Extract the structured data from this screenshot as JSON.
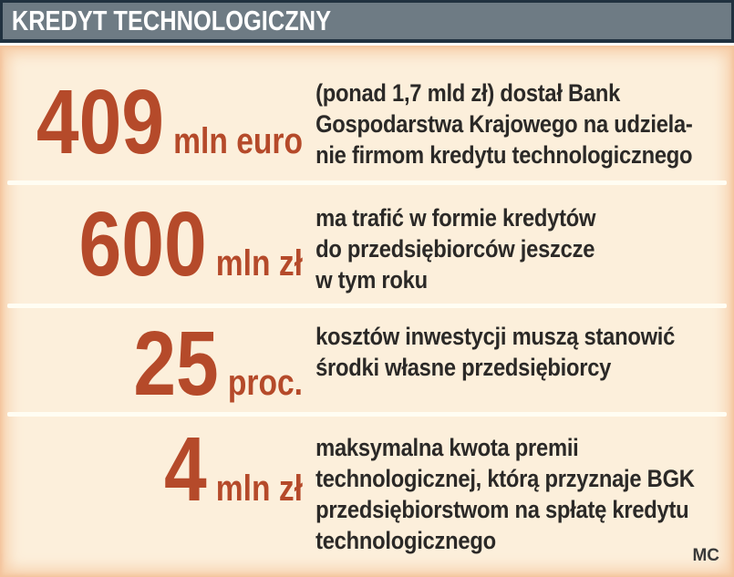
{
  "header": {
    "title": "KREDYT TECHNOLOGICZNY"
  },
  "rows": [
    {
      "value": "409",
      "unit": "mln euro",
      "lines": "(ponad 1,7 mld zł) dostał Bank\nGospodarstwa Krajowego na udziela-\nnie firmom kredytu technologicznego"
    },
    {
      "value": "600",
      "unit": "mln zł",
      "lines": "ma trafić w formie kredytów\ndo przedsiębiorców jeszcze\nw tym roku"
    },
    {
      "value": "25",
      "unit": "proc.",
      "lines": "kosztów inwestycji muszą stanowić\nśrodki własne przedsiębiorcy"
    },
    {
      "value": "4",
      "unit": "mln zł",
      "lines": "maksymalna kwota premii\ntechnologicznej, którą przyznaje BGK\nprzedsiębiorstwom na spłatę kredytu\ntechnologicznego"
    }
  ],
  "footer": {
    "credit": "MC"
  },
  "colors": {
    "header_bar": "#6e7b84",
    "header_border": "#20313f",
    "panel_background": "#fcefdb",
    "panel_edge": "#f6cda7",
    "divider": "#fffdf3",
    "accent_number": "#b54a2a",
    "body_text": "#2b2927"
  },
  "chart_data": {
    "type": "table",
    "title": "KREDYT TECHNOLOGICZNY",
    "rows": [
      {
        "value": 409,
        "unit": "mln euro",
        "description": "(ponad 1,7 mld zł) dostał Bank Gospodarstwa Krajowego na udzielanie firmom kredytu technologicznego"
      },
      {
        "value": 600,
        "unit": "mln zł",
        "description": "ma trafić w formie kredytów do przedsiębiorców jeszcze w tym roku"
      },
      {
        "value": 25,
        "unit": "proc.",
        "description": "kosztów inwestycji muszą stanowić środki własne przedsiębiorcy"
      },
      {
        "value": 4,
        "unit": "mln zł",
        "description": "maksymalna kwota premii technologicznej, którą przyznaje BGK przedsiębiorstwom na spłatę kredytu technologicznego"
      }
    ]
  }
}
